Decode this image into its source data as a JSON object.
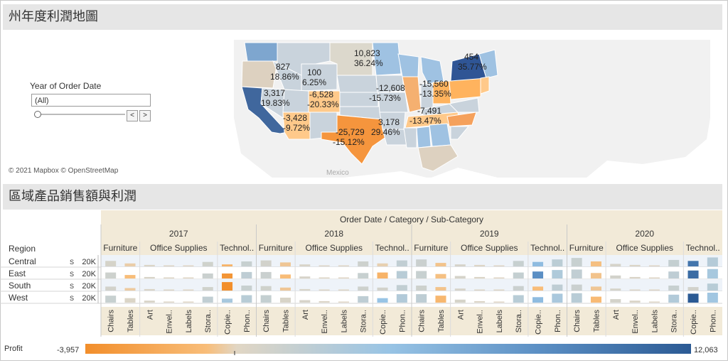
{
  "map_section": {
    "title": "州年度利潤地圖",
    "filter": {
      "label": "Year of Order Date",
      "value": "(All)",
      "prev_label": "<",
      "next_label": ">"
    },
    "attribution": "© 2021 Mapbox © OpenStreetMap",
    "mexico_label": "Mexico",
    "state_labels": [
      {
        "profit": "827",
        "pct": "18.86%"
      },
      {
        "profit": "100",
        "pct": "6.25%"
      },
      {
        "profit": "3,317",
        "pct": "19.83%"
      },
      {
        "profit": "-6,528",
        "pct": "-20.33%"
      },
      {
        "profit": "-3,428",
        "pct": "-9.72%"
      },
      {
        "profit": "10,823",
        "pct": "36.24%"
      },
      {
        "profit": "-12,608",
        "pct": "-15.73%"
      },
      {
        "profit": "-25,729",
        "pct": "-15.12%"
      },
      {
        "profit": "3,178",
        "pct": "29.46%"
      },
      {
        "profit": "-15,560",
        "pct": "-13.35%"
      },
      {
        "profit": "-7,491",
        "pct": "-13.47%"
      },
      {
        "profit": "454",
        "pct": "35.77%"
      }
    ]
  },
  "chart_section": {
    "title": "區域產品銷售額與利潤",
    "header_title": "Order Date / Category / Sub-Category",
    "region_header": "Region",
    "axis_symbol": "S",
    "axis_value": "20K"
  },
  "legend": {
    "label": "Profit",
    "min": "-3,957",
    "max": "12,063"
  },
  "chart_data": {
    "type": "bar",
    "years": [
      "2017",
      "2018",
      "2019",
      "2020"
    ],
    "categories": [
      {
        "name": "Furniture",
        "sub_categories": [
          "Chairs",
          "Tables"
        ]
      },
      {
        "name": "Office Supplies",
        "sub_categories": [
          "Art",
          "Envel..",
          "Labels",
          "Stora.."
        ]
      },
      {
        "name": "Technol..",
        "sub_categories": [
          "Copie..",
          "Phon.."
        ]
      }
    ],
    "regions": [
      "Central",
      "East",
      "South",
      "West"
    ],
    "profit_range": [
      -3957,
      12063
    ],
    "sales": [
      [
        [
          0.55,
          0.3,
          0.15,
          0.1,
          0.05,
          0.45,
          0.2,
          0.5
        ],
        [
          0.6,
          0.4,
          0.2,
          0.1,
          0.05,
          0.5,
          0.3,
          0.6
        ],
        [
          0.7,
          0.35,
          0.2,
          0.15,
          0.05,
          0.55,
          0.45,
          0.7
        ],
        [
          0.85,
          0.5,
          0.25,
          0.15,
          0.05,
          0.65,
          0.55,
          0.9
        ]
      ],
      [
        [
          0.6,
          0.35,
          0.15,
          0.1,
          0.05,
          0.5,
          0.5,
          0.65
        ],
        [
          0.65,
          0.4,
          0.2,
          0.1,
          0.05,
          0.55,
          0.6,
          0.75
        ],
        [
          0.75,
          0.45,
          0.25,
          0.15,
          0.05,
          0.6,
          0.7,
          0.85
        ],
        [
          0.9,
          0.55,
          0.3,
          0.15,
          0.05,
          0.7,
          0.8,
          0.95
        ]
      ],
      [
        [
          0.4,
          0.25,
          0.15,
          0.05,
          0.05,
          0.35,
          0.85,
          0.5
        ],
        [
          0.45,
          0.3,
          0.15,
          0.05,
          0.05,
          0.4,
          0.3,
          0.55
        ],
        [
          0.5,
          0.35,
          0.2,
          0.1,
          0.05,
          0.45,
          0.4,
          0.6
        ],
        [
          0.6,
          0.4,
          0.2,
          0.1,
          0.05,
          0.5,
          0.35,
          0.7
        ]
      ],
      [
        [
          0.7,
          0.45,
          0.2,
          0.1,
          0.05,
          0.6,
          0.4,
          0.75
        ],
        [
          0.75,
          0.5,
          0.25,
          0.15,
          0.05,
          0.65,
          0.45,
          0.85
        ],
        [
          0.85,
          0.7,
          0.3,
          0.15,
          0.05,
          0.75,
          0.55,
          0.9
        ],
        [
          0.95,
          0.6,
          0.35,
          0.2,
          0.05,
          0.8,
          0.9,
          1.0
        ]
      ]
    ],
    "profit": [
      [
        [
          400,
          -300,
          200,
          100,
          50,
          600,
          -1500,
          900
        ],
        [
          500,
          -500,
          300,
          150,
          60,
          700,
          -200,
          1100
        ],
        [
          800,
          -600,
          400,
          150,
          70,
          900,
          3000,
          1300
        ],
        [
          900,
          -700,
          400,
          200,
          80,
          1000,
          9000,
          1500
        ]
      ],
      [
        [
          700,
          -800,
          300,
          150,
          60,
          800,
          -3500,
          1200
        ],
        [
          800,
          -900,
          350,
          150,
          70,
          900,
          -1500,
          1400
        ],
        [
          900,
          -700,
          400,
          200,
          80,
          1000,
          6000,
          1700
        ],
        [
          1100,
          -600,
          500,
          250,
          90,
          1200,
          10000,
          2000
        ]
      ],
      [
        [
          500,
          -400,
          250,
          100,
          50,
          600,
          -3900,
          900
        ],
        [
          600,
          -500,
          300,
          100,
          60,
          700,
          500,
          1100
        ],
        [
          700,
          -600,
          350,
          150,
          60,
          800,
          -800,
          1200
        ],
        [
          800,
          -500,
          400,
          150,
          70,
          900,
          500,
          1400
        ]
      ],
      [
        [
          900,
          200,
          300,
          150,
          60,
          1100,
          2000,
          1400
        ],
        [
          1000,
          300,
          350,
          200,
          70,
          1200,
          2500,
          1600
        ],
        [
          1200,
          -1200,
          400,
          200,
          80,
          1400,
          3000,
          1900
        ],
        [
          1400,
          -1000,
          450,
          250,
          90,
          1600,
          12063,
          2200
        ]
      ]
    ]
  }
}
